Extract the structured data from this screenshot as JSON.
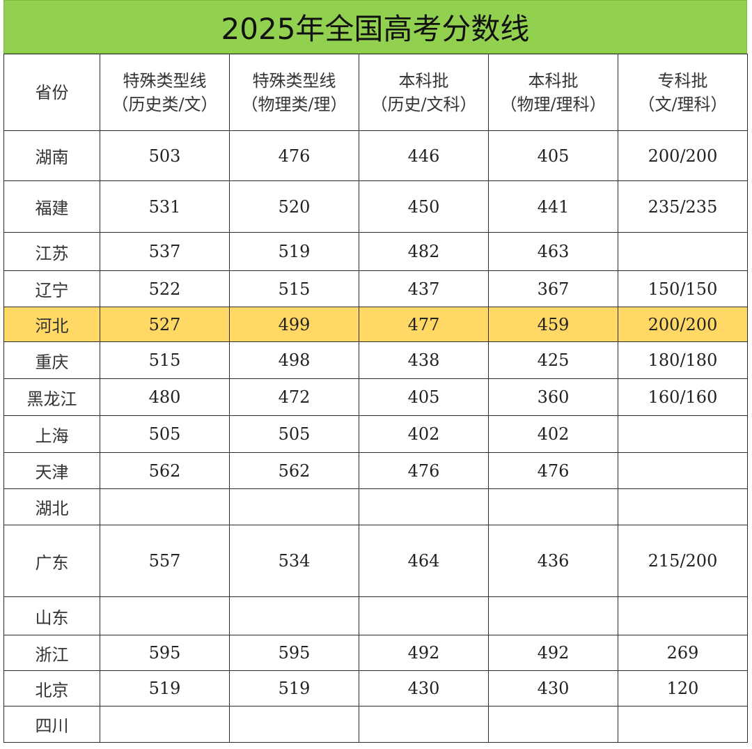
{
  "title": "2025年全国高考分数线",
  "columns": [
    {
      "line1": "省份",
      "line2": ""
    },
    {
      "line1": "特殊类型线",
      "line2": "（历史类/文）"
    },
    {
      "line1": "特殊类型线",
      "line2": "（物理类/理）"
    },
    {
      "line1": "本科批",
      "line2": "（历史/文科）"
    },
    {
      "line1": "本科批",
      "line2": "（物理/理科）"
    },
    {
      "line1": "专科批",
      "line2": "（文/理科）"
    }
  ],
  "rows": [
    {
      "province": "湖南",
      "cells": [
        "503",
        "476",
        "446",
        "405",
        "200/200"
      ]
    },
    {
      "province": "福建",
      "cells": [
        "531",
        "520",
        "450",
        "441",
        "235/235"
      ]
    },
    {
      "province": "江苏",
      "cells": [
        "537",
        "519",
        "482",
        "463",
        ""
      ]
    },
    {
      "province": "辽宁",
      "cells": [
        "522",
        "515",
        "437",
        "367",
        "150/150"
      ]
    },
    {
      "province": "河北",
      "cells": [
        "527",
        "499",
        "477",
        "459",
        "200/200"
      ],
      "highlight": "#ffd866"
    },
    {
      "province": "重庆",
      "cells": [
        "515",
        "498",
        "438",
        "425",
        "180/180"
      ]
    },
    {
      "province": "黑龙江",
      "cells": [
        "480",
        "472",
        "405",
        "360",
        "160/160"
      ]
    },
    {
      "province": "上海",
      "cells": [
        "505",
        "505",
        "402",
        "402",
        ""
      ]
    },
    {
      "province": "天津",
      "cells": [
        "562",
        "562",
        "476",
        "476",
        ""
      ]
    },
    {
      "province": "湖北",
      "cells": [
        "",
        "",
        "",
        "",
        ""
      ]
    },
    {
      "province": "广东",
      "cells": [
        "557",
        "534",
        "464",
        "436",
        "215/200"
      ]
    },
    {
      "province": "山东",
      "cells": [
        "",
        "",
        "",
        "",
        ""
      ]
    },
    {
      "province": "浙江",
      "cells": [
        "595",
        "595",
        "492",
        "492",
        "269"
      ]
    },
    {
      "province": "北京",
      "cells": [
        "519",
        "519",
        "430",
        "430",
        "120"
      ]
    },
    {
      "province": "四川",
      "cells": [
        "",
        "",
        "",
        "",
        ""
      ]
    }
  ],
  "colors": {
    "title_bg": "#92d050",
    "highlight_row": "#ffd866"
  }
}
